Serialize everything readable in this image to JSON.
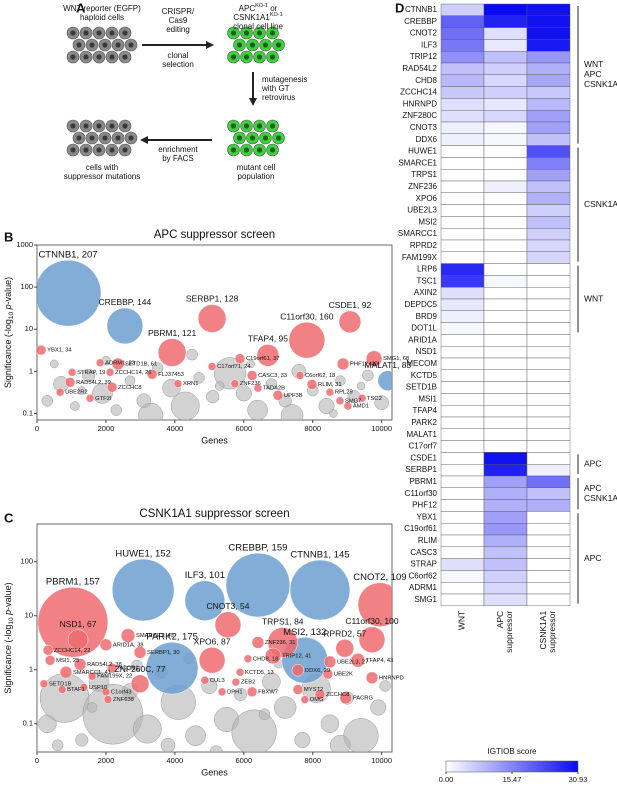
{
  "panel_labels": [
    "A",
    "B",
    "C",
    "D"
  ],
  "diagram": {
    "start": [
      "WNT reporter (EGFP)",
      "haploid cells"
    ],
    "edit": [
      "CRISPR/",
      "Cas9",
      "editing"
    ],
    "select": [
      "clonal",
      "selection"
    ],
    "clone": [
      [
        "APC",
        "KO-1",
        " or"
      ],
      [
        "CSNK1A1",
        "KO-1"
      ],
      [
        "clonal cell line"
      ]
    ],
    "mutagenesis": [
      "mutagenesis",
      "with GT",
      "retrovirus"
    ],
    "mutant": [
      "mutant cell",
      "population"
    ],
    "enrich": [
      "enrichment",
      "by FACS"
    ],
    "result": [
      "cells with",
      "suppressor mutations"
    ]
  },
  "chart_data": [
    {
      "type": "bubble",
      "title": "APC suppressor screen",
      "xlabel": "Genes",
      "ylabel": [
        "Significance (-log",
        "10",
        " p",
        "-value)"
      ],
      "xlim": [
        0,
        10300
      ],
      "xticks": [
        0,
        2000,
        4000,
        6000,
        8000,
        10000
      ],
      "ylim": [
        0.07,
        1000
      ],
      "yticks": [
        0.1,
        1,
        10,
        100,
        1000
      ],
      "log_y": true,
      "series": [
        {
          "color": "#b4b4b4",
          "x": [
            300,
            700,
            1100,
            1500,
            1900,
            2300,
            2700,
            3100,
            3500,
            3900,
            4300,
            4700,
            5100,
            5600,
            6000,
            6400,
            6800,
            7200,
            7600,
            8000,
            8400,
            8800,
            9200,
            9600,
            10000,
            500,
            2000,
            4500,
            6200,
            8600,
            3300,
            7400,
            1300,
            5300,
            9400
          ],
          "values": [
            0.2,
            0.5,
            0.15,
            0.8,
            0.3,
            0.12,
            0.6,
            0.2,
            1.2,
            0.4,
            0.15,
            0.7,
            0.25,
            0.9,
            0.3,
            0.12,
            0.5,
            0.2,
            1.0,
            0.35,
            0.15,
            0.6,
            0.25,
            0.8,
            0.18,
            1.5,
            1.8,
            2.5,
            1.5,
            0.1,
            0.09,
            0.09,
            0.35,
            0.45,
            0.45
          ],
          "sizes": [
            30,
            60,
            20,
            40,
            100,
            30,
            25,
            50,
            30,
            80,
            200,
            30,
            40,
            250,
            60,
            100,
            30,
            40,
            50,
            30,
            60,
            25,
            40,
            30,
            50,
            16,
            20,
            30,
            16,
            16,
            150,
            120,
            16,
            20,
            16
          ]
        },
        {
          "color": "#6b9fd0",
          "labels": [
            "CTNNB1, 207",
            "CREBBP, 144",
            "MALAT1, 83"
          ],
          "x": [
            900,
            2550,
            10180
          ],
          "values": [
            72,
            12,
            0.6
          ],
          "sizes": [
            1089,
            324,
            100
          ]
        },
        {
          "color": "#ee6b6e",
          "labels": [
            "SERBP1, 128",
            "PBRM1, 121",
            "CSDE1, 92",
            "C11orf30, 160",
            "TFAP4, 95",
            "SMG1, 68",
            "PHF12, 40",
            "C19orf61, 37",
            "YBX1, 34",
            "ADRM1, 23",
            "SETD1B, 61",
            "STRAP, 19",
            "ZCCHC14, 26",
            "RAD54L2, 39",
            "UBE2R2",
            "GTF2I",
            "ZCCHC8",
            "FLJ37453",
            "XRN1",
            "C17orf71, 24",
            "CASC3, 33",
            "ZNF236",
            "TADA2B",
            "UPF3B",
            "C6orf62, 18",
            "RLIM, 31",
            "RPL29",
            "SMG7",
            "AMD1",
            "TSC2"
          ],
          "x": [
            5080,
            3920,
            9080,
            7830,
            6700,
            9780,
            8880,
            5890,
            120,
            1830,
            2350,
            1020,
            2120,
            960,
            670,
            1540,
            2180,
            3340,
            4090,
            5080,
            6240,
            5740,
            6410,
            6990,
            7630,
            7980,
            8500,
            8790,
            9020,
            9430
          ],
          "values": [
            18,
            2.8,
            15,
            5.5,
            2.4,
            2.0,
            1.5,
            2.0,
            3.2,
            1.6,
            1.5,
            0.95,
            0.95,
            0.55,
            0.32,
            0.23,
            0.42,
            0.85,
            0.51,
            1.3,
            0.8,
            0.51,
            0.4,
            0.27,
            0.8,
            0.49,
            0.32,
            0.2,
            0.15,
            0.23
          ],
          "sizes": [
            196,
            196,
            121,
            324,
            121,
            64,
            36,
            25,
            25,
            16,
            36,
            16,
            16,
            25,
            16,
            16,
            25,
            25,
            16,
            16,
            25,
            16,
            16,
            25,
            16,
            25,
            16,
            16,
            16,
            16
          ]
        }
      ]
    },
    {
      "type": "bubble",
      "title": "CSNK1A1 suppressor screen",
      "xlabel": "Genes",
      "ylabel": [
        "Significance (-log",
        "10",
        " p",
        "-value)"
      ],
      "xlim": [
        0,
        10300
      ],
      "xticks": [
        0,
        2000,
        4000,
        6000,
        8000,
        10000
      ],
      "ylim": [
        0.03,
        500
      ],
      "yticks": [
        0.1,
        1,
        10,
        100
      ],
      "log_y": true,
      "series": [
        {
          "color": "#b4b4b4",
          "x": [
            300,
            800,
            1300,
            1800,
            2200,
            2700,
            3200,
            3600,
            4100,
            4600,
            5000,
            5500,
            5900,
            6300,
            6800,
            7200,
            7700,
            8100,
            8500,
            9000,
            9400,
            9900,
            600,
            1600,
            3800,
            5200,
            6600,
            8800,
            10100,
            2900,
            4400,
            7000
          ],
          "values": [
            0.1,
            0.3,
            0.05,
            0.6,
            0.15,
            0.4,
            0.08,
            0.9,
            0.25,
            0.06,
            0.5,
            0.12,
            0.35,
            0.07,
            0.6,
            0.2,
            0.05,
            0.45,
            0.1,
            0.3,
            0.06,
            0.2,
            0.04,
            0.2,
            0.04,
            0.03,
            0.15,
            0.04,
            0.5,
            1.2,
            1.6,
            1.3
          ],
          "sizes": [
            80,
            600,
            40,
            100,
            900,
            60,
            200,
            40,
            300,
            100,
            60,
            150,
            40,
            500,
            80,
            120,
            60,
            200,
            80,
            40,
            300,
            60,
            30,
            25,
            50,
            40,
            30,
            100,
            30,
            30,
            25,
            20
          ]
        },
        {
          "color": "#6b9fd0",
          "labels": [
            "HUWE1, 152",
            "ILF3, 101",
            "CREBBP, 159",
            "CTNNB1, 145",
            "MSI2, 132",
            "PARK2, 175"
          ],
          "x": [
            3080,
            4870,
            6410,
            8210,
            7770,
            3920
          ],
          "values": [
            30,
            19,
            37,
            30,
            1.5,
            1.07
          ],
          "sizes": [
            961,
            400,
            1024,
            900,
            529,
            676
          ]
        },
        {
          "color": "#ee6b6e",
          "labels": [
            "PBRM1, 157",
            "CNOT2, 109",
            "CNOT3, 54",
            "TRPS1, 84",
            "TRIP12, 41",
            "XPO6, 87",
            "RPRD2, 57",
            "C11orf30, 100",
            "NSD1, 67",
            "SMARCE1, 40",
            "ARID1A, 38",
            "SERBP1, 30",
            "ZCCHC14, 22",
            "MSI1, 25",
            "RAD54L2, 38",
            "NCOR1",
            "SMARCC1, 41",
            "FAM199X, 22",
            "SETD1B",
            "BTAF1",
            "USP10",
            "C1orf43",
            "ZNF638",
            "ZNF260C, 77",
            "ZNF236, 31",
            "CHD8, 18",
            "KCTD5, 13",
            "ZEB2",
            "FBXW7",
            "DPH1",
            "CUL3",
            "DDX6, 29",
            "UBE2L3, 27",
            "UBE2K",
            "TFAP4, 43",
            "HNRNPD",
            "MYST2",
            "OMG",
            "ZCCHC8",
            "PACRG"
          ],
          "x": [
            1040,
            9950,
            5540,
            7130,
            6850,
            5080,
            8930,
            9720,
            1190,
            2640,
            2000,
            2990,
            320,
            380,
            1250,
            2180,
            840,
            1600,
            200,
            730,
            1360,
            2000,
            2060,
            2990,
            6410,
            6120,
            5890,
            5770,
            6240,
            5370,
            4870,
            7570,
            8500,
            8440,
            9310,
            9720,
            7570,
            7770,
            8210,
            8960
          ],
          "values": [
            7.6,
            16,
            6.8,
            3.2,
            1.8,
            1.5,
            2.5,
            3.6,
            3.6,
            4.3,
            2.9,
            2.1,
            2.3,
            1.5,
            1.26,
            1.07,
            0.9,
            0.76,
            0.55,
            0.43,
            0.47,
            0.39,
            0.28,
            0.55,
            3.2,
            1.6,
            0.9,
            0.59,
            0.39,
            0.39,
            0.64,
            0.98,
            1.4,
            0.83,
            1.5,
            0.71,
            0.43,
            0.28,
            0.35,
            0.3
          ],
          "sizes": [
            1225,
            484,
            169,
            225,
            64,
            169,
            81,
            169,
            100,
            49,
            36,
            36,
            25,
            25,
            36,
            25,
            36,
            16,
            16,
            16,
            16,
            16,
            16,
            81,
            36,
            16,
            16,
            16,
            25,
            16,
            16,
            36,
            36,
            25,
            49,
            36,
            25,
            16,
            25,
            36
          ]
        }
      ]
    },
    {
      "type": "heatmap",
      "rows": [
        "CTNNB1",
        "CREBBP",
        "CNOT2",
        "ILF3",
        "TRIP12",
        "RAD54L2",
        "CHD8",
        "ZCCHC14",
        "HNRNPD",
        "ZNF280C",
        "CNOT3",
        "DDX6",
        "HUWE1",
        "SMARCE1",
        "TRPS1",
        "ZNF236",
        "XPO6",
        "UBE2L3",
        "MSI2",
        "SMARCC1",
        "RPRD2",
        "FAM199X",
        "LRP6",
        "TSC1",
        "AXIN2",
        "DEPDC5",
        "BRD9",
        "DOT1L",
        "ARID1A",
        "NSD1",
        "MECOM",
        "KCTD5",
        "SETD1B",
        "MSI1",
        "TFAP4",
        "PARK2",
        "MALAT1",
        "C17orf7",
        "CSDE1",
        "SERBP1",
        "PBRM1",
        "C11orf30",
        "PHF12",
        "YBX1",
        "C19orf61",
        "RLIM",
        "CASC3",
        "STRAP",
        "C6orf62",
        "ADRM1",
        "SMG1"
      ],
      "columns": [
        [
          "WNT"
        ],
        [
          "APC",
          "suppressor"
        ],
        [
          "CSNK1A1",
          "suppressor"
        ]
      ],
      "values": [
        [
          6,
          30.93,
          30
        ],
        [
          20,
          28,
          30
        ],
        [
          18,
          4,
          30
        ],
        [
          17,
          3,
          29
        ],
        [
          14,
          8,
          13
        ],
        [
          8,
          6,
          10
        ],
        [
          9,
          5,
          11
        ],
        [
          7,
          6,
          7
        ],
        [
          4,
          3,
          9
        ],
        [
          4,
          5,
          12
        ],
        [
          2,
          1,
          12
        ],
        [
          2,
          1,
          8
        ],
        [
          0,
          0,
          22
        ],
        [
          0,
          0,
          16
        ],
        [
          0,
          0,
          12
        ],
        [
          0,
          2,
          8
        ],
        [
          0,
          0,
          10
        ],
        [
          0,
          0,
          6
        ],
        [
          0,
          0,
          8
        ],
        [
          0,
          0,
          6
        ],
        [
          0,
          0,
          5
        ],
        [
          0,
          0,
          5
        ],
        [
          27,
          0,
          0
        ],
        [
          25,
          1,
          0
        ],
        [
          4,
          0,
          0
        ],
        [
          3,
          0,
          0
        ],
        [
          2,
          0,
          0
        ],
        [
          1,
          0,
          0
        ],
        [
          0,
          0,
          0
        ],
        [
          0,
          0,
          0
        ],
        [
          0,
          0,
          0
        ],
        [
          0,
          0,
          0
        ],
        [
          0,
          0,
          0
        ],
        [
          0,
          0,
          0
        ],
        [
          0,
          0,
          0
        ],
        [
          0,
          0,
          0
        ],
        [
          0,
          0,
          0
        ],
        [
          0,
          0,
          0
        ],
        [
          0,
          30,
          0
        ],
        [
          0,
          28,
          2
        ],
        [
          0,
          12,
          18
        ],
        [
          0,
          10,
          8
        ],
        [
          0,
          10,
          10
        ],
        [
          0,
          12,
          0
        ],
        [
          0,
          13,
          0
        ],
        [
          0,
          10,
          0
        ],
        [
          0,
          8,
          0
        ],
        [
          4,
          8,
          0
        ],
        [
          1,
          6,
          0
        ],
        [
          0,
          5,
          0
        ],
        [
          0,
          4,
          0
        ]
      ],
      "zlim": [
        0,
        30.93
      ],
      "colors": [
        "#ffffff",
        "#0a0af0"
      ],
      "colorbar": {
        "label": "IGTIOB score",
        "ticks": [
          {
            "value": 0,
            "label": "0.00"
          },
          15.47,
          30.93
        ]
      },
      "highlight": {
        "color": "#e2343c",
        "rows": [
          12,
          39
        ]
      },
      "groups": [
        {
          "labels": [
            "WNT",
            "APC",
            "CSNK1A1"
          ],
          "start": 0,
          "end": 11
        },
        {
          "labels": [
            "CSNK1A1"
          ],
          "start": 12,
          "end": 21
        },
        {
          "labels": [
            "WNT"
          ],
          "start": 22,
          "end": 27
        },
        {
          "labels": [
            "APC"
          ],
          "start": 38,
          "end": 39
        },
        {
          "labels": [
            "APC",
            "CSNK1A1"
          ],
          "start": 40,
          "end": 42
        },
        {
          "labels": [
            "APC"
          ],
          "start": 43,
          "end": 50
        }
      ]
    }
  ]
}
